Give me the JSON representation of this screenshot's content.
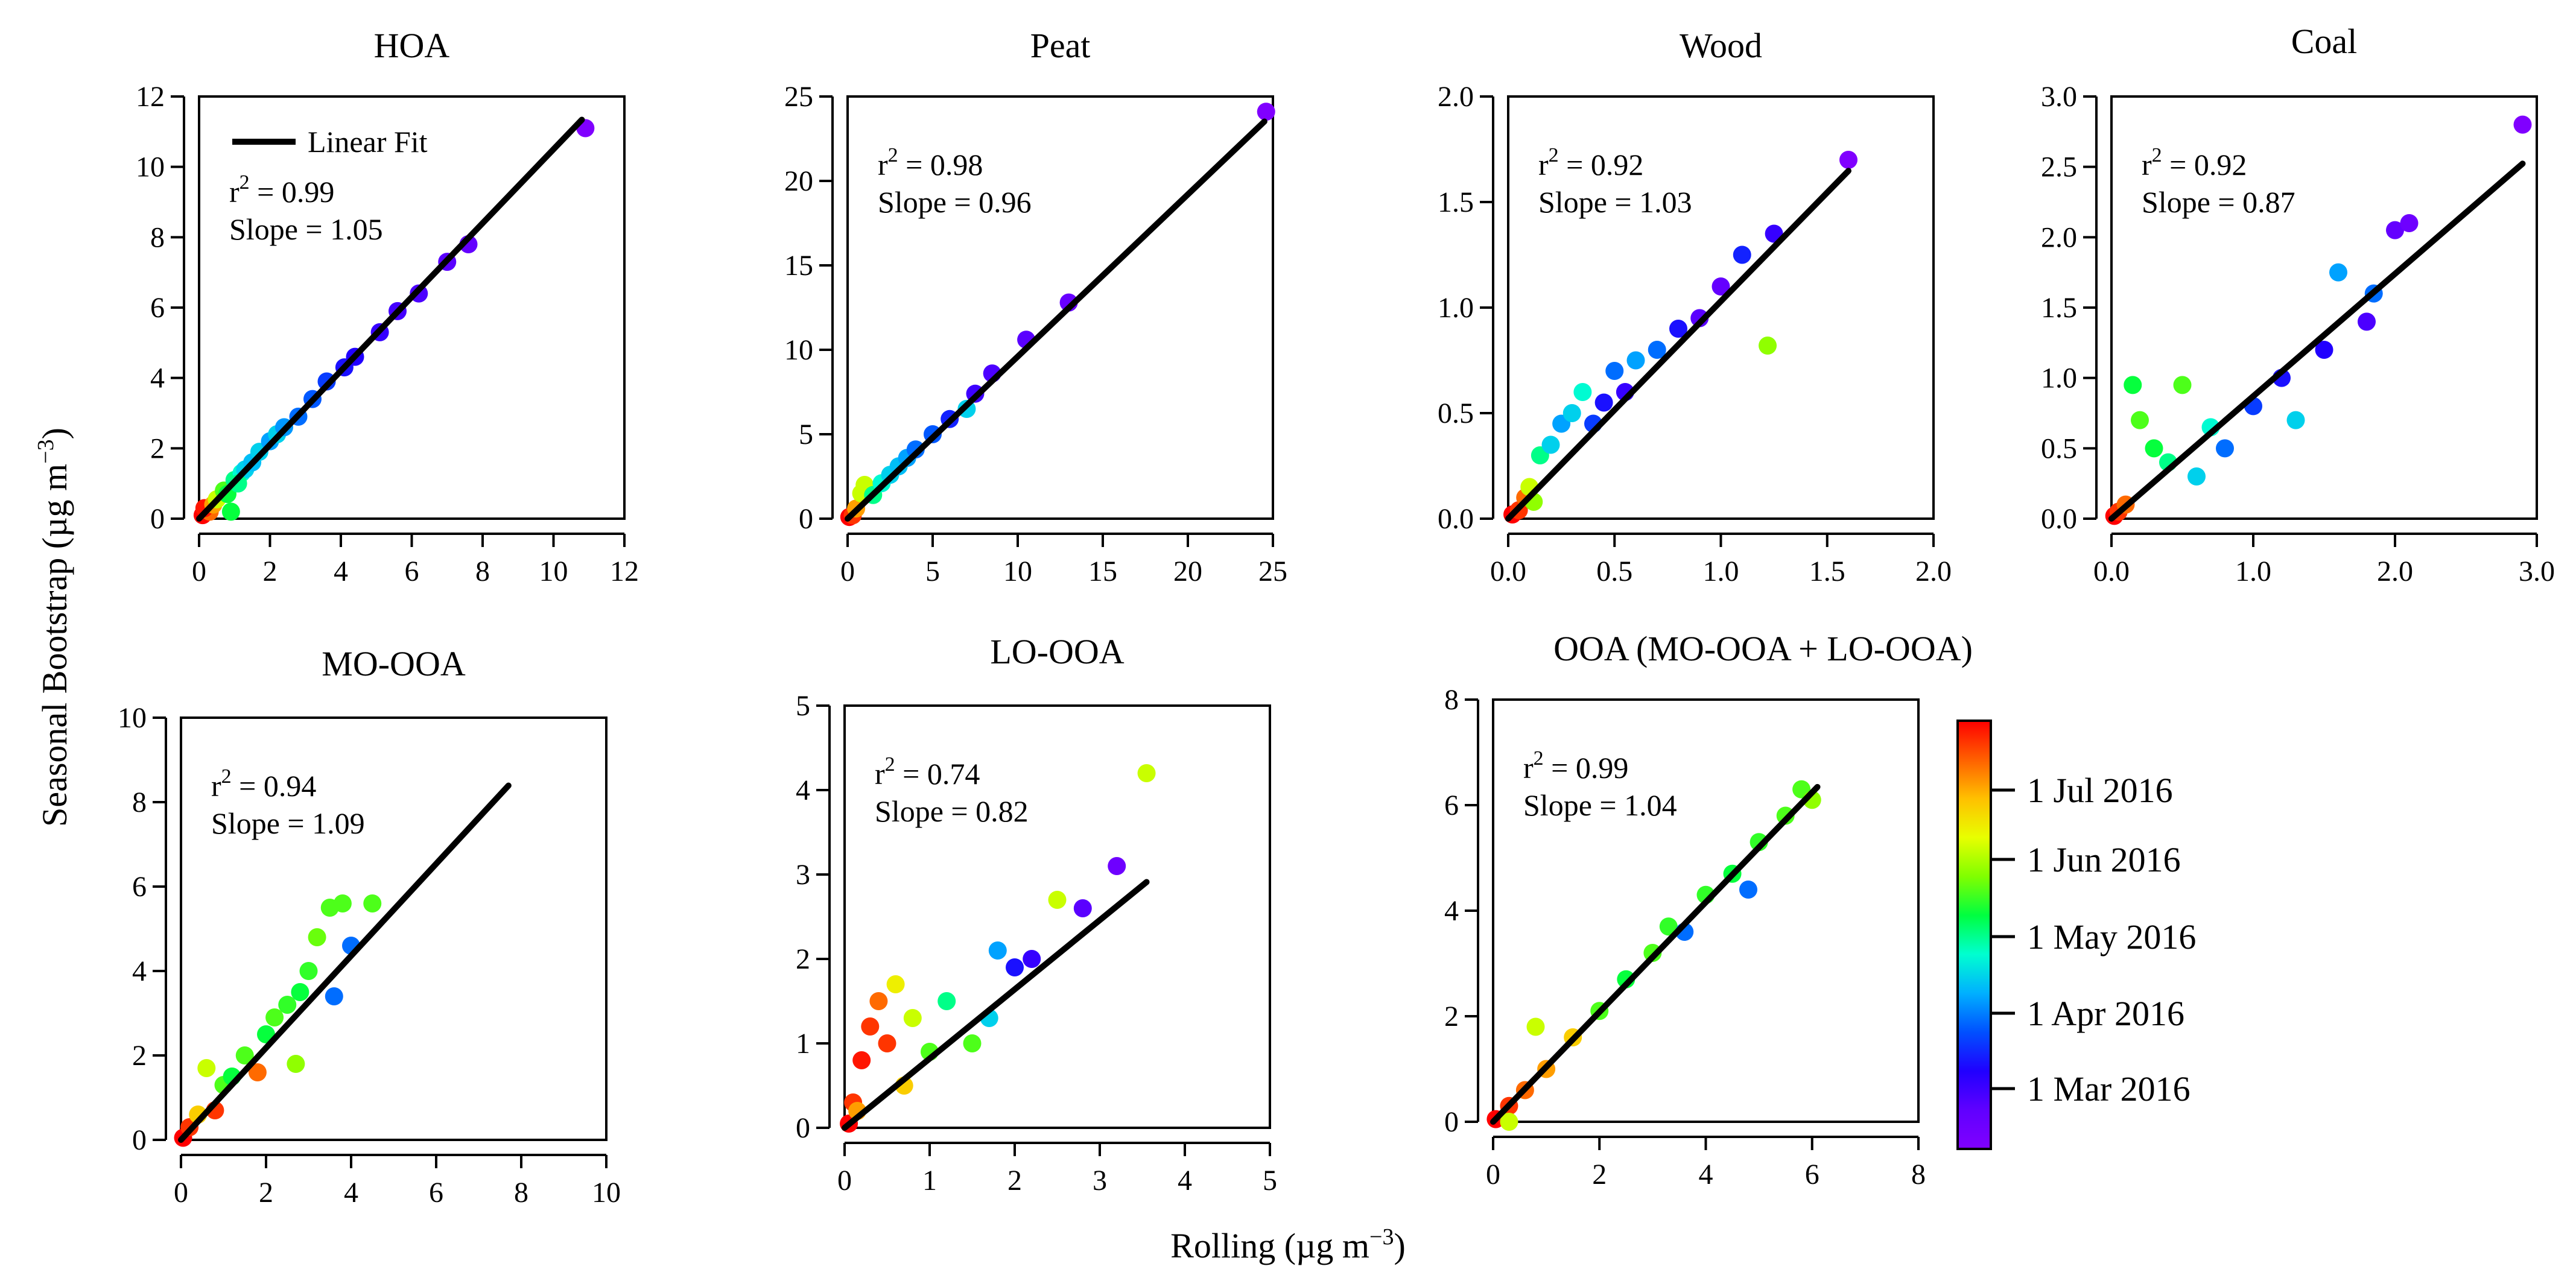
{
  "figure": {
    "y_label": "Seasonal Bootstrap (µg m",
    "y_label_sup": "−3",
    "y_label_end": ")",
    "x_label": "Rolling (µg m",
    "x_label_sup": "−3",
    "x_label_end": ")",
    "ooa_caption": "OOA (MO-OOA + LO-OOA)",
    "legend_fit_label": "Linear Fit",
    "colorbar": {
      "ticks": [
        "1 Jul 2016",
        "1 Jun 2016",
        "1 May 2016",
        "1 Apr 2016",
        "1 Mar 2016"
      ],
      "colors": [
        "#ff0000",
        "#ff6000",
        "#ffc000",
        "#e8ff00",
        "#80ff00",
        "#00ff40",
        "#00ffd0",
        "#00b0ff",
        "#0050ff",
        "#2000ff",
        "#6000ff",
        "#8000ff"
      ]
    }
  },
  "chart_data": [
    {
      "type": "scatter",
      "title": "HOA",
      "xlim": [
        0,
        12
      ],
      "ylim": [
        0,
        12
      ],
      "xticks": [
        0,
        2,
        4,
        6,
        8,
        10,
        12
      ],
      "xtick_labels": [
        "0",
        "2",
        "4",
        "6",
        "8",
        "10",
        "12"
      ],
      "yticks": [
        0,
        2,
        4,
        6,
        8,
        10,
        12
      ],
      "ytick_labels": [
        "0",
        "2",
        "4",
        "6",
        "8",
        "10",
        "12"
      ],
      "r2": "0.99",
      "r2_prefix": "r",
      "r2_sup": "2",
      "r2_eq": " = 0.99",
      "slope_text": "Slope = 1.05",
      "slope": 1.05,
      "fit_x": [
        0,
        10.8
      ],
      "points": [
        [
          0.1,
          0.1,
          0.0
        ],
        [
          0.2,
          0.25,
          0.05
        ],
        [
          0.3,
          0.2,
          0.1
        ],
        [
          0.15,
          0.3,
          0.02
        ],
        [
          0.4,
          0.4,
          0.15
        ],
        [
          0.5,
          0.55,
          0.3
        ],
        [
          0.7,
          0.8,
          0.4
        ],
        [
          0.8,
          0.7,
          0.45
        ],
        [
          1.0,
          1.1,
          0.5
        ],
        [
          1.2,
          1.3,
          0.55
        ],
        [
          1.3,
          1.4,
          0.6
        ],
        [
          1.5,
          1.6,
          0.62
        ],
        [
          1.7,
          1.9,
          0.6
        ],
        [
          2.0,
          2.2,
          0.65
        ],
        [
          2.2,
          2.4,
          0.6
        ],
        [
          2.4,
          2.6,
          0.66
        ],
        [
          2.8,
          2.9,
          0.7
        ],
        [
          3.2,
          3.4,
          0.72
        ],
        [
          3.6,
          3.9,
          0.75
        ],
        [
          4.1,
          4.3,
          0.8
        ],
        [
          4.4,
          4.6,
          0.82
        ],
        [
          5.1,
          5.3,
          0.85
        ],
        [
          5.6,
          5.9,
          0.87
        ],
        [
          6.2,
          6.4,
          0.88
        ],
        [
          7.0,
          7.3,
          0.9
        ],
        [
          7.6,
          7.8,
          0.92
        ],
        [
          10.9,
          11.1,
          1.0
        ],
        [
          0.9,
          0.2,
          0.45
        ],
        [
          1.1,
          1.0,
          0.5
        ]
      ]
    },
    {
      "type": "scatter",
      "title": "Peat",
      "xlim": [
        0,
        25
      ],
      "ylim": [
        0,
        25
      ],
      "xticks": [
        0,
        5,
        10,
        15,
        20,
        25
      ],
      "xtick_labels": [
        "0",
        "5",
        "10",
        "15",
        "20",
        "25"
      ],
      "yticks": [
        0,
        5,
        10,
        15,
        20,
        25
      ],
      "ytick_labels": [
        "0",
        "5",
        "10",
        "15",
        "20",
        "25"
      ],
      "r2": "0.98",
      "r2_prefix": "r",
      "r2_sup": "2",
      "r2_eq": " = 0.98",
      "slope_text": "Slope = 0.96",
      "slope": 0.96,
      "fit_x": [
        0,
        24.5
      ],
      "points": [
        [
          0.1,
          0.1,
          0.0
        ],
        [
          0.3,
          0.2,
          0.05
        ],
        [
          0.5,
          0.6,
          0.15
        ],
        [
          0.8,
          1.5,
          0.3
        ],
        [
          1.0,
          2.0,
          0.3
        ],
        [
          1.5,
          1.4,
          0.5
        ],
        [
          2.0,
          2.1,
          0.55
        ],
        [
          2.5,
          2.6,
          0.6
        ],
        [
          3.0,
          3.1,
          0.62
        ],
        [
          3.5,
          3.6,
          0.65
        ],
        [
          4.0,
          4.1,
          0.7
        ],
        [
          5.0,
          5.0,
          0.72
        ],
        [
          6.0,
          5.9,
          0.78
        ],
        [
          7.0,
          6.5,
          0.6
        ],
        [
          7.5,
          7.4,
          0.86
        ],
        [
          8.5,
          8.6,
          0.88
        ],
        [
          10.5,
          10.6,
          0.9
        ],
        [
          13.0,
          12.8,
          0.93
        ],
        [
          24.6,
          24.1,
          1.0
        ]
      ]
    },
    {
      "type": "scatter",
      "title": "Wood",
      "xlim": [
        0,
        2
      ],
      "ylim": [
        0,
        2
      ],
      "xticks": [
        0,
        0.5,
        1.0,
        1.5,
        2.0
      ],
      "xtick_labels": [
        "0.0",
        "0.5",
        "1.0",
        "1.5",
        "2.0"
      ],
      "yticks": [
        0,
        0.5,
        1.0,
        1.5,
        2.0
      ],
      "ytick_labels": [
        "0.0",
        "0.5",
        "1.0",
        "1.5",
        "2.0"
      ],
      "r2": "0.92",
      "r2_prefix": "r",
      "r2_sup": "2",
      "r2_eq": " = 0.92",
      "slope_text": "Slope = 1.03",
      "slope": 1.03,
      "fit_x": [
        0,
        1.6
      ],
      "points": [
        [
          0.02,
          0.02,
          0.0
        ],
        [
          0.05,
          0.04,
          0.05
        ],
        [
          0.08,
          0.1,
          0.1
        ],
        [
          0.1,
          0.15,
          0.3
        ],
        [
          0.15,
          0.3,
          0.5
        ],
        [
          0.2,
          0.35,
          0.6
        ],
        [
          0.25,
          0.45,
          0.65
        ],
        [
          0.3,
          0.5,
          0.6
        ],
        [
          0.35,
          0.6,
          0.55
        ],
        [
          0.4,
          0.45,
          0.75
        ],
        [
          0.45,
          0.55,
          0.8
        ],
        [
          0.5,
          0.7,
          0.7
        ],
        [
          0.55,
          0.6,
          0.85
        ],
        [
          0.6,
          0.75,
          0.65
        ],
        [
          0.7,
          0.8,
          0.7
        ],
        [
          0.8,
          0.9,
          0.8
        ],
        [
          0.9,
          0.95,
          0.9
        ],
        [
          1.0,
          1.1,
          0.92
        ],
        [
          1.1,
          1.25,
          0.78
        ],
        [
          1.25,
          1.35,
          0.85
        ],
        [
          1.22,
          0.82,
          0.35
        ],
        [
          1.6,
          1.7,
          1.0
        ],
        [
          0.12,
          0.08,
          0.35
        ]
      ]
    },
    {
      "type": "scatter",
      "title": "Coal",
      "xlim": [
        0,
        3
      ],
      "ylim": [
        0,
        3
      ],
      "xticks": [
        0,
        1.0,
        2.0,
        3.0
      ],
      "xtick_labels": [
        "0.0",
        "1.0",
        "2.0",
        "3.0"
      ],
      "yticks": [
        0,
        0.5,
        1.0,
        1.5,
        2.0,
        2.5,
        3.0
      ],
      "ytick_labels": [
        "0.0",
        "0.5",
        "1.0",
        "1.5",
        "2.0",
        "2.5",
        "3.0"
      ],
      "r2": "0.92",
      "r2_prefix": "r",
      "r2_sup": "2",
      "r2_eq": " = 0.92",
      "slope_text": "Slope = 0.87",
      "slope": 0.87,
      "fit_x": [
        0,
        2.9
      ],
      "points": [
        [
          0.02,
          0.02,
          0.0
        ],
        [
          0.05,
          0.05,
          0.05
        ],
        [
          0.1,
          0.1,
          0.1
        ],
        [
          0.15,
          0.95,
          0.45
        ],
        [
          0.2,
          0.7,
          0.4
        ],
        [
          0.3,
          0.5,
          0.45
        ],
        [
          0.4,
          0.4,
          0.5
        ],
        [
          0.5,
          0.95,
          0.4
        ],
        [
          0.6,
          0.3,
          0.6
        ],
        [
          0.7,
          0.65,
          0.55
        ],
        [
          0.8,
          0.5,
          0.7
        ],
        [
          1.0,
          0.8,
          0.75
        ],
        [
          1.2,
          1.0,
          0.8
        ],
        [
          1.3,
          0.7,
          0.6
        ],
        [
          1.5,
          1.2,
          0.82
        ],
        [
          1.6,
          1.75,
          0.65
        ],
        [
          1.8,
          1.4,
          0.88
        ],
        [
          1.85,
          1.6,
          0.7
        ],
        [
          2.0,
          2.05,
          0.92
        ],
        [
          2.1,
          2.1,
          0.95
        ],
        [
          2.9,
          2.8,
          1.0
        ]
      ]
    },
    {
      "type": "scatter",
      "title": "MO-OOA",
      "xlim": [
        0,
        10
      ],
      "ylim": [
        0,
        10
      ],
      "xticks": [
        0,
        2,
        4,
        6,
        8,
        10
      ],
      "xtick_labels": [
        "0",
        "2",
        "4",
        "6",
        "8",
        "10"
      ],
      "yticks": [
        0,
        2,
        4,
        6,
        8,
        10
      ],
      "ytick_labels": [
        "0",
        "2",
        "4",
        "6",
        "8",
        "10"
      ],
      "r2": "0.94",
      "r2_prefix": "r",
      "r2_sup": "2",
      "r2_eq": " = 0.94",
      "slope_text": "Slope = 1.09",
      "slope": 1.09,
      "fit_x": [
        0,
        7.7
      ],
      "points": [
        [
          0.05,
          0.05,
          0.0
        ],
        [
          0.2,
          0.3,
          0.05
        ],
        [
          0.4,
          0.6,
          0.2
        ],
        [
          0.6,
          1.7,
          0.3
        ],
        [
          0.8,
          0.7,
          0.05
        ],
        [
          1.0,
          1.3,
          0.4
        ],
        [
          1.2,
          1.5,
          0.45
        ],
        [
          1.5,
          2.0,
          0.4
        ],
        [
          1.8,
          1.6,
          0.1
        ],
        [
          2.0,
          2.5,
          0.45
        ],
        [
          2.2,
          2.9,
          0.4
        ],
        [
          2.5,
          3.2,
          0.42
        ],
        [
          2.8,
          3.5,
          0.45
        ],
        [
          3.0,
          4.0,
          0.42
        ],
        [
          3.2,
          4.8,
          0.38
        ],
        [
          3.5,
          5.5,
          0.4
        ],
        [
          3.8,
          5.6,
          0.4
        ],
        [
          4.0,
          4.6,
          0.7
        ],
        [
          4.5,
          5.6,
          0.4
        ],
        [
          3.6,
          3.4,
          0.7
        ],
        [
          2.7,
          1.8,
          0.35
        ]
      ]
    },
    {
      "type": "scatter",
      "title": "LO-OOA",
      "xlim": [
        0,
        5
      ],
      "ylim": [
        0,
        5
      ],
      "xticks": [
        0,
        1,
        2,
        3,
        4,
        5
      ],
      "xtick_labels": [
        "0",
        "1",
        "2",
        "3",
        "4",
        "5"
      ],
      "yticks": [
        0,
        1,
        2,
        3,
        4,
        5
      ],
      "ytick_labels": [
        "0",
        "1",
        "2",
        "3",
        "4",
        "5"
      ],
      "r2": "0.74",
      "r2_prefix": "r",
      "r2_sup": "2",
      "r2_eq": " = 0.74",
      "slope_text": "Slope = 0.82",
      "slope": 0.82,
      "fit_x": [
        0,
        3.55
      ],
      "points": [
        [
          0.05,
          0.05,
          0.0
        ],
        [
          0.1,
          0.3,
          0.05
        ],
        [
          0.2,
          0.8,
          0.02
        ],
        [
          0.3,
          1.2,
          0.05
        ],
        [
          0.4,
          1.5,
          0.1
        ],
        [
          0.5,
          1.0,
          0.05
        ],
        [
          0.6,
          1.7,
          0.25
        ],
        [
          0.7,
          0.5,
          0.2
        ],
        [
          0.8,
          1.3,
          0.3
        ],
        [
          1.0,
          0.9,
          0.4
        ],
        [
          1.2,
          1.5,
          0.5
        ],
        [
          1.5,
          1.0,
          0.4
        ],
        [
          1.7,
          1.3,
          0.6
        ],
        [
          2.0,
          1.9,
          0.8
        ],
        [
          2.2,
          2.0,
          0.85
        ],
        [
          2.5,
          2.7,
          0.3
        ],
        [
          2.8,
          2.6,
          0.9
        ],
        [
          3.2,
          3.1,
          0.95
        ],
        [
          3.55,
          4.2,
          0.3
        ],
        [
          1.8,
          2.1,
          0.65
        ],
        [
          0.15,
          0.2,
          0.15
        ]
      ]
    },
    {
      "type": "scatter",
      "title": "OOA (MO-OOA + LO-OOA)",
      "xlim": [
        0,
        8
      ],
      "ylim": [
        0,
        8
      ],
      "xticks": [
        0,
        2,
        4,
        6,
        8
      ],
      "xtick_labels": [
        "0",
        "2",
        "4",
        "6",
        "8"
      ],
      "yticks": [
        0,
        2,
        4,
        6,
        8
      ],
      "ytick_labels": [
        "0",
        "2",
        "4",
        "6",
        "8"
      ],
      "r2": "0.99",
      "r2_prefix": "r",
      "r2_sup": "2",
      "r2_eq": " = 0.99",
      "slope_text": "Slope = 1.04",
      "slope": 1.04,
      "fit_x": [
        0,
        6.1
      ],
      "points": [
        [
          0.05,
          0.05,
          0.0
        ],
        [
          0.3,
          0.3,
          0.05
        ],
        [
          0.6,
          0.6,
          0.1
        ],
        [
          0.8,
          1.8,
          0.3
        ],
        [
          1.0,
          1.0,
          0.15
        ],
        [
          1.5,
          1.6,
          0.2
        ],
        [
          2.0,
          2.1,
          0.4
        ],
        [
          2.5,
          2.7,
          0.45
        ],
        [
          3.0,
          3.2,
          0.4
        ],
        [
          3.3,
          3.7,
          0.42
        ],
        [
          3.6,
          3.6,
          0.7
        ],
        [
          4.0,
          4.3,
          0.42
        ],
        [
          4.5,
          4.7,
          0.45
        ],
        [
          5.0,
          5.3,
          0.42
        ],
        [
          5.5,
          5.8,
          0.4
        ],
        [
          5.8,
          6.3,
          0.4
        ],
        [
          6.0,
          6.1,
          0.35
        ],
        [
          4.8,
          4.4,
          0.7
        ],
        [
          0.3,
          0.0,
          0.3
        ]
      ]
    }
  ]
}
